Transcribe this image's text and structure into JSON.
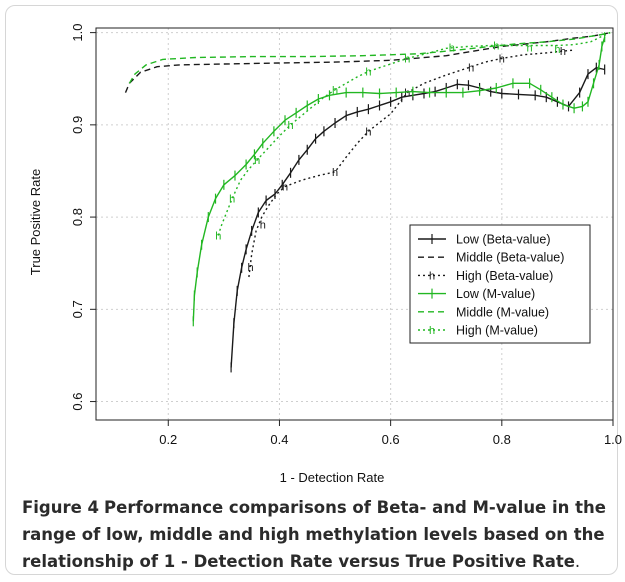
{
  "figure": {
    "caption_label": "Figure 4",
    "caption_text": "Performance comparisons of Beta- and M-value in the range of low, middle and high methylation levels based on the relationship of 1 - Detection Rate versus True Positive Rate",
    "caption_end": "."
  },
  "chart_data": {
    "type": "line",
    "xlabel": "1 - Detection Rate",
    "ylabel": "True Positive Rate",
    "xlim": [
      0.07,
      1.0
    ],
    "ylim": [
      0.58,
      1.005
    ],
    "xticks": [
      "0.2",
      "0.4",
      "0.6",
      "0.8",
      "1.0"
    ],
    "xtick_values": [
      0.2,
      0.4,
      0.6,
      0.8,
      1.0
    ],
    "yticks": [
      "0.6",
      "0.7",
      "0.8",
      "0.9",
      "1.0"
    ],
    "ytick_values": [
      0.6,
      0.7,
      0.8,
      0.9,
      1.0
    ],
    "grid": true,
    "legend_position": "right-middle",
    "series": [
      {
        "name": "Low (Beta-value)",
        "color": "#1a1a1a",
        "dash": "solid",
        "marker": "bar",
        "points": [
          [
            0.313,
            0.637
          ],
          [
            0.318,
            0.685
          ],
          [
            0.324,
            0.72
          ],
          [
            0.332,
            0.745
          ],
          [
            0.34,
            0.765
          ],
          [
            0.35,
            0.785
          ],
          [
            0.362,
            0.805
          ],
          [
            0.376,
            0.818
          ],
          [
            0.392,
            0.825
          ],
          [
            0.405,
            0.835
          ],
          [
            0.42,
            0.848
          ],
          [
            0.435,
            0.862
          ],
          [
            0.45,
            0.873
          ],
          [
            0.465,
            0.885
          ],
          [
            0.48,
            0.893
          ],
          [
            0.5,
            0.902
          ],
          [
            0.52,
            0.91
          ],
          [
            0.54,
            0.914
          ],
          [
            0.56,
            0.917
          ],
          [
            0.58,
            0.921
          ],
          [
            0.6,
            0.925
          ],
          [
            0.62,
            0.93
          ],
          [
            0.64,
            0.932
          ],
          [
            0.66,
            0.934
          ],
          [
            0.68,
            0.936
          ],
          [
            0.7,
            0.94
          ],
          [
            0.72,
            0.944
          ],
          [
            0.74,
            0.943
          ],
          [
            0.76,
            0.94
          ],
          [
            0.78,
            0.936
          ],
          [
            0.8,
            0.934
          ],
          [
            0.83,
            0.933
          ],
          [
            0.86,
            0.932
          ],
          [
            0.88,
            0.93
          ],
          [
            0.9,
            0.925
          ],
          [
            0.92,
            0.92
          ],
          [
            0.94,
            0.935
          ],
          [
            0.955,
            0.955
          ],
          [
            0.97,
            0.962
          ],
          [
            0.985,
            0.96
          ]
        ]
      },
      {
        "name": "Middle (Beta-value)",
        "color": "#1a1a1a",
        "dash": "dashed",
        "marker": "none",
        "points": [
          [
            0.123,
            0.935
          ],
          [
            0.13,
            0.945
          ],
          [
            0.15,
            0.957
          ],
          [
            0.18,
            0.963
          ],
          [
            0.22,
            0.965
          ],
          [
            0.3,
            0.966
          ],
          [
            0.4,
            0.967
          ],
          [
            0.5,
            0.968
          ],
          [
            0.6,
            0.97
          ],
          [
            0.7,
            0.975
          ],
          [
            0.8,
            0.985
          ],
          [
            0.88,
            0.99
          ],
          [
            0.93,
            0.994
          ],
          [
            0.96,
            0.996
          ],
          [
            0.98,
            0.998
          ],
          [
            0.995,
            1.0
          ]
        ]
      },
      {
        "name": "High (Beta-value)",
        "color": "#1a1a1a",
        "dash": "dotted",
        "marker": "h",
        "points": [
          [
            0.345,
            0.735
          ],
          [
            0.35,
            0.76
          ],
          [
            0.358,
            0.785
          ],
          [
            0.368,
            0.8
          ],
          [
            0.38,
            0.812
          ],
          [
            0.395,
            0.825
          ],
          [
            0.41,
            0.833
          ],
          [
            0.44,
            0.84
          ],
          [
            0.47,
            0.845
          ],
          [
            0.5,
            0.849
          ],
          [
            0.52,
            0.865
          ],
          [
            0.54,
            0.88
          ],
          [
            0.56,
            0.893
          ],
          [
            0.6,
            0.912
          ],
          [
            0.63,
            0.935
          ],
          [
            0.66,
            0.945
          ],
          [
            0.7,
            0.954
          ],
          [
            0.74,
            0.962
          ],
          [
            0.77,
            0.968
          ],
          [
            0.8,
            0.972
          ],
          [
            0.84,
            0.976
          ],
          [
            0.88,
            0.978
          ],
          [
            0.91,
            0.98
          ],
          [
            0.93,
            0.981
          ]
        ],
        "marker_points": [
          [
            0.348,
            0.746
          ],
          [
            0.37,
            0.792
          ],
          [
            0.41,
            0.833
          ],
          [
            0.5,
            0.849
          ],
          [
            0.56,
            0.893
          ],
          [
            0.63,
            0.935
          ],
          [
            0.745,
            0.962
          ],
          [
            0.8,
            0.972
          ],
          [
            0.91,
            0.98
          ]
        ]
      },
      {
        "name": "Low (M-value)",
        "color": "#22b722",
        "dash": "solid",
        "marker": "bar",
        "points": [
          [
            0.245,
            0.687
          ],
          [
            0.247,
            0.715
          ],
          [
            0.252,
            0.74
          ],
          [
            0.26,
            0.77
          ],
          [
            0.272,
            0.8
          ],
          [
            0.285,
            0.82
          ],
          [
            0.3,
            0.835
          ],
          [
            0.32,
            0.845
          ],
          [
            0.34,
            0.857
          ],
          [
            0.355,
            0.868
          ],
          [
            0.37,
            0.88
          ],
          [
            0.39,
            0.893
          ],
          [
            0.41,
            0.905
          ],
          [
            0.43,
            0.913
          ],
          [
            0.45,
            0.921
          ],
          [
            0.47,
            0.928
          ],
          [
            0.49,
            0.932
          ],
          [
            0.52,
            0.935
          ],
          [
            0.55,
            0.935
          ],
          [
            0.58,
            0.934
          ],
          [
            0.61,
            0.935
          ],
          [
            0.64,
            0.936
          ],
          [
            0.67,
            0.935
          ],
          [
            0.7,
            0.935
          ],
          [
            0.73,
            0.935
          ],
          [
            0.76,
            0.937
          ],
          [
            0.79,
            0.94
          ],
          [
            0.82,
            0.945
          ],
          [
            0.85,
            0.945
          ],
          [
            0.87,
            0.938
          ],
          [
            0.89,
            0.93
          ],
          [
            0.91,
            0.922
          ],
          [
            0.93,
            0.918
          ],
          [
            0.945,
            0.92
          ],
          [
            0.955,
            0.925
          ],
          [
            0.965,
            0.945
          ],
          [
            0.975,
            0.965
          ],
          [
            0.98,
            0.985
          ],
          [
            0.985,
            0.995
          ]
        ]
      },
      {
        "name": "Middle (M-value)",
        "color": "#22b722",
        "dash": "dashed",
        "marker": "none",
        "points": [
          [
            0.13,
            0.945
          ],
          [
            0.14,
            0.955
          ],
          [
            0.16,
            0.965
          ],
          [
            0.19,
            0.971
          ],
          [
            0.25,
            0.973
          ],
          [
            0.35,
            0.974
          ],
          [
            0.45,
            0.974
          ],
          [
            0.55,
            0.975
          ],
          [
            0.65,
            0.977
          ],
          [
            0.72,
            0.981
          ],
          [
            0.78,
            0.985
          ],
          [
            0.83,
            0.988
          ],
          [
            0.88,
            0.99
          ],
          [
            0.93,
            0.993
          ],
          [
            0.96,
            0.996
          ],
          [
            0.98,
            0.998
          ],
          [
            0.995,
            1.0
          ]
        ]
      },
      {
        "name": "High (M-value)",
        "color": "#22b722",
        "dash": "dotted",
        "marker": "h",
        "points": [
          [
            0.29,
            0.78
          ],
          [
            0.295,
            0.79
          ],
          [
            0.305,
            0.805
          ],
          [
            0.315,
            0.82
          ],
          [
            0.33,
            0.84
          ],
          [
            0.345,
            0.852
          ],
          [
            0.36,
            0.862
          ],
          [
            0.38,
            0.875
          ],
          [
            0.4,
            0.888
          ],
          [
            0.42,
            0.9
          ],
          [
            0.44,
            0.91
          ],
          [
            0.46,
            0.92
          ],
          [
            0.48,
            0.93
          ],
          [
            0.5,
            0.938
          ],
          [
            0.52,
            0.945
          ],
          [
            0.54,
            0.952
          ],
          [
            0.56,
            0.958
          ],
          [
            0.58,
            0.962
          ],
          [
            0.6,
            0.966
          ],
          [
            0.63,
            0.972
          ],
          [
            0.67,
            0.978
          ],
          [
            0.7,
            0.983
          ],
          [
            0.74,
            0.985
          ],
          [
            0.78,
            0.986
          ],
          [
            0.82,
            0.986
          ],
          [
            0.86,
            0.986
          ],
          [
            0.9,
            0.986
          ],
          [
            0.93,
            0.987
          ],
          [
            0.96,
            0.99
          ],
          [
            0.98,
            0.996
          ],
          [
            0.995,
            1.0
          ]
        ],
        "marker_points": [
          [
            0.29,
            0.78
          ],
          [
            0.315,
            0.82
          ],
          [
            0.36,
            0.862
          ],
          [
            0.42,
            0.9
          ],
          [
            0.5,
            0.938
          ],
          [
            0.56,
            0.958
          ],
          [
            0.63,
            0.972
          ],
          [
            0.71,
            0.984
          ],
          [
            0.79,
            0.986
          ],
          [
            0.85,
            0.984
          ],
          [
            0.9,
            0.982
          ]
        ]
      }
    ]
  }
}
